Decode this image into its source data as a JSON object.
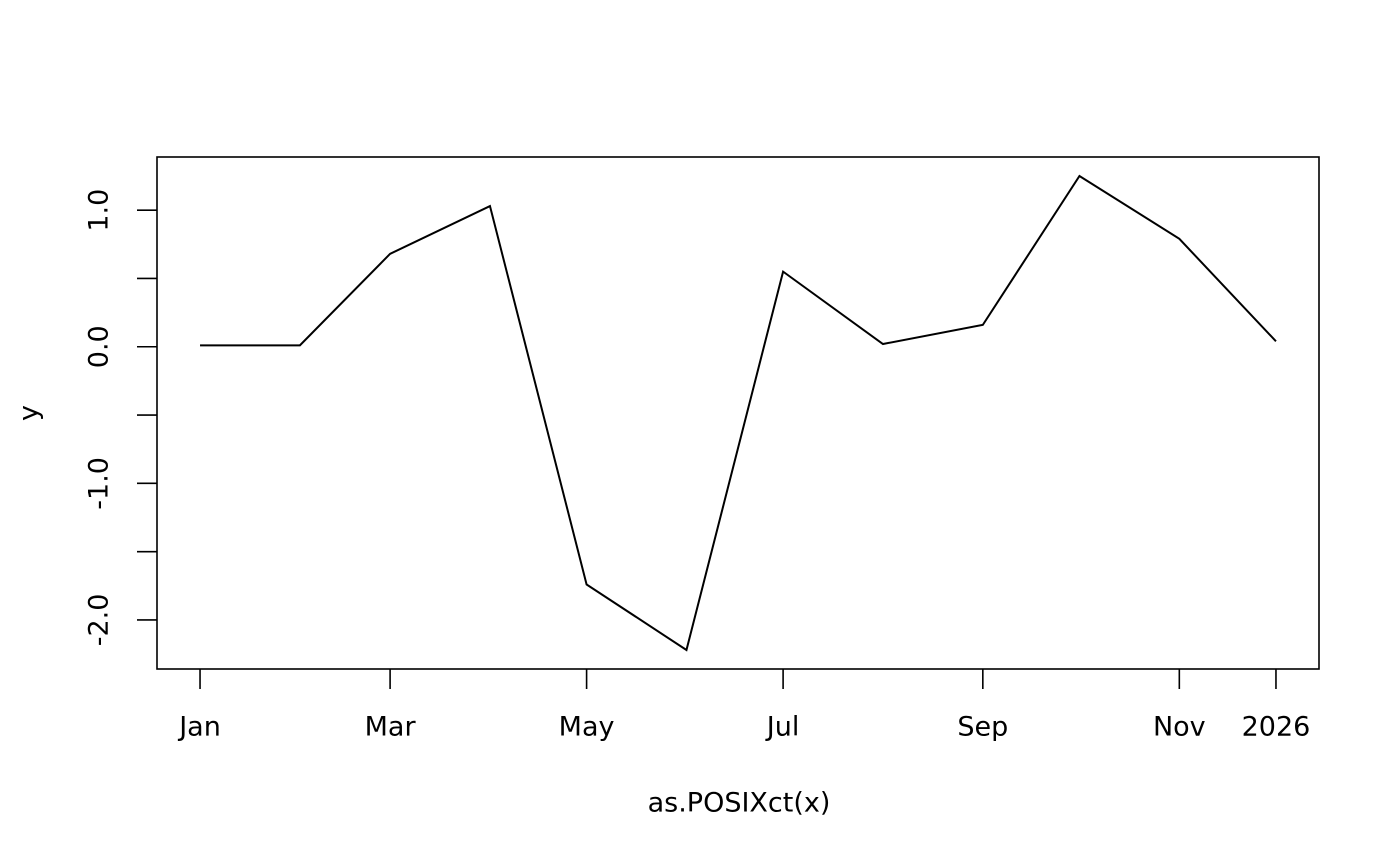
{
  "chart_data": {
    "type": "line",
    "x_label": "as.POSIXct(x)",
    "y_label": "y",
    "x": [
      0,
      31,
      59,
      90,
      120,
      151,
      181,
      212,
      243,
      273,
      304,
      334
    ],
    "series": [
      {
        "name": "y",
        "color": "#000000",
        "values": [
          0.01,
          0.01,
          0.68,
          1.03,
          -1.74,
          -2.22,
          0.55,
          0.02,
          0.16,
          1.25,
          0.79,
          0.04
        ]
      }
    ],
    "xlim": [
      -13.36,
      347.36
    ],
    "xticks": [
      {
        "value": 0,
        "label": "Jan"
      },
      {
        "value": 59,
        "label": "Mar"
      },
      {
        "value": 120,
        "label": "May"
      },
      {
        "value": 181,
        "label": "Jul"
      },
      {
        "value": 243,
        "label": "Sep"
      },
      {
        "value": 304,
        "label": "Nov"
      },
      {
        "value": 334,
        "label": "2026"
      }
    ],
    "ylim": [
      -2.359,
      1.389
    ],
    "yticks": [
      {
        "value": -2,
        "label": "-2.0"
      },
      {
        "value": -1.5,
        "label": null
      },
      {
        "value": -1,
        "label": "-1.0"
      },
      {
        "value": -0.5,
        "label": null
      },
      {
        "value": 0,
        "label": "0.0"
      },
      {
        "value": 0.5,
        "label": null
      },
      {
        "value": 1,
        "label": "1.0"
      }
    ]
  }
}
